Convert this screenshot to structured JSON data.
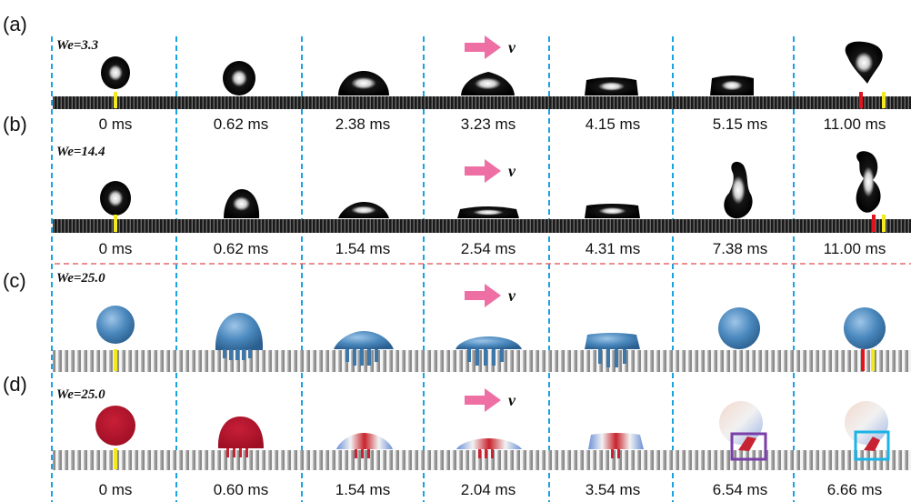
{
  "panels": [
    {
      "letter": "(a)",
      "we_label": "We=3.3",
      "kind": "experiment",
      "times": [
        "0 ms",
        "0.62 ms",
        "2.38 ms",
        "3.23 ms",
        "4.15 ms",
        "5.15 ms",
        "11.00 ms"
      ]
    },
    {
      "letter": "(b)",
      "we_label": "We=14.4",
      "kind": "experiment",
      "times": [
        "0 ms",
        "0.62 ms",
        "1.54 ms",
        "2.54 ms",
        "4.31 ms",
        "7.38 ms",
        "11.00 ms"
      ]
    },
    {
      "letter": "(c)",
      "we_label": "We=25.0",
      "kind": "simulation",
      "times": []
    },
    {
      "letter": "(d)",
      "we_label": "We=25.0",
      "kind": "simulation-colored",
      "times": [
        "0 ms",
        "0.60 ms",
        "1.54 ms",
        "2.04 ms",
        "3.54 ms",
        "6.54 ms",
        "6.66 ms"
      ]
    }
  ],
  "velocity_label": "v",
  "colors": {
    "divider_blue": "#1aa3e0",
    "divider_red": "#e86a6a",
    "arrow_pink": "#ee6fa3",
    "sim_drop_blue": "#4a88bd",
    "drop_red": "#b5142b",
    "marker_yellow": "#f2ea1d",
    "marker_red": "#e0141e",
    "box_purple": "#7a3fa8",
    "box_cyan": "#1ab4e8"
  }
}
